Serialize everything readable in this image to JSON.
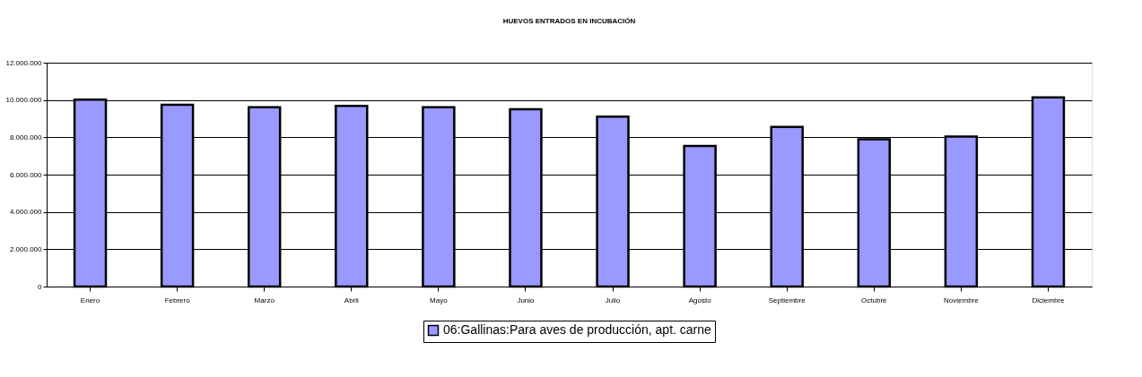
{
  "chart_data": {
    "type": "bar",
    "title": "HUEVOS ENTRADOS EN INCUBACIÓN",
    "categories": [
      "Enero",
      "Febrero",
      "Marzo",
      "Abril",
      "Mayo",
      "Junio",
      "Julio",
      "Agosto",
      "Septiembre",
      "Octubre",
      "Noviembre",
      "Diciembre"
    ],
    "series": [
      {
        "name": "06:Gallinas:Para aves de producción, apt. carne",
        "color": "#9999ff",
        "values": [
          10020000,
          9750000,
          9610000,
          9680000,
          9610000,
          9500000,
          9110000,
          7540000,
          8560000,
          7900000,
          8040000,
          10140000
        ]
      }
    ],
    "ylim": [
      0,
      12000000
    ],
    "yticks": [
      {
        "value": 0,
        "label": "0"
      },
      {
        "value": 2000000,
        "label": "2.000.000"
      },
      {
        "value": 4000000,
        "label": "4.000.000"
      },
      {
        "value": 6000000,
        "label": "6.000.000"
      },
      {
        "value": 8000000,
        "label": "8.000.000"
      },
      {
        "value": 10000000,
        "label": "10.000.000"
      },
      {
        "value": 12000000,
        "label": "12.000.000"
      }
    ],
    "grid": "y",
    "legend": "bottom"
  }
}
